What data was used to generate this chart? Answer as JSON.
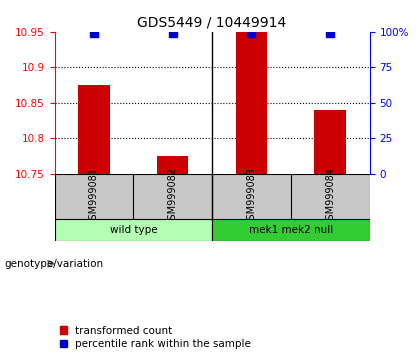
{
  "title": "GDS5449 / 10449914",
  "samples": [
    "GSM999081",
    "GSM999082",
    "GSM999083",
    "GSM999084"
  ],
  "red_values": [
    10.875,
    10.775,
    10.95,
    10.84
  ],
  "blue_values": [
    99,
    99,
    99,
    99
  ],
  "ylim_left": [
    10.75,
    10.95
  ],
  "ylim_right": [
    0,
    100
  ],
  "yticks_left": [
    10.75,
    10.8,
    10.85,
    10.9,
    10.95
  ],
  "yticks_right": [
    0,
    25,
    50,
    75,
    100
  ],
  "ytick_labels_right": [
    "0",
    "25",
    "50",
    "75",
    "100%"
  ],
  "groups": [
    {
      "label": "wild type",
      "samples": [
        0,
        1
      ],
      "color": "#b3ffb3"
    },
    {
      "label": "mek1 mek2 null",
      "samples": [
        2,
        3
      ],
      "color": "#33cc33"
    }
  ],
  "group_label": "genotype/variation",
  "legend_red": "transformed count",
  "legend_blue": "percentile rank within the sample",
  "bar_color": "#cc0000",
  "dot_color": "#0000cc",
  "bg_plot": "#ffffff",
  "bg_sample_row": "#c8c8c8",
  "bar_width": 0.4,
  "dot_size": 28
}
